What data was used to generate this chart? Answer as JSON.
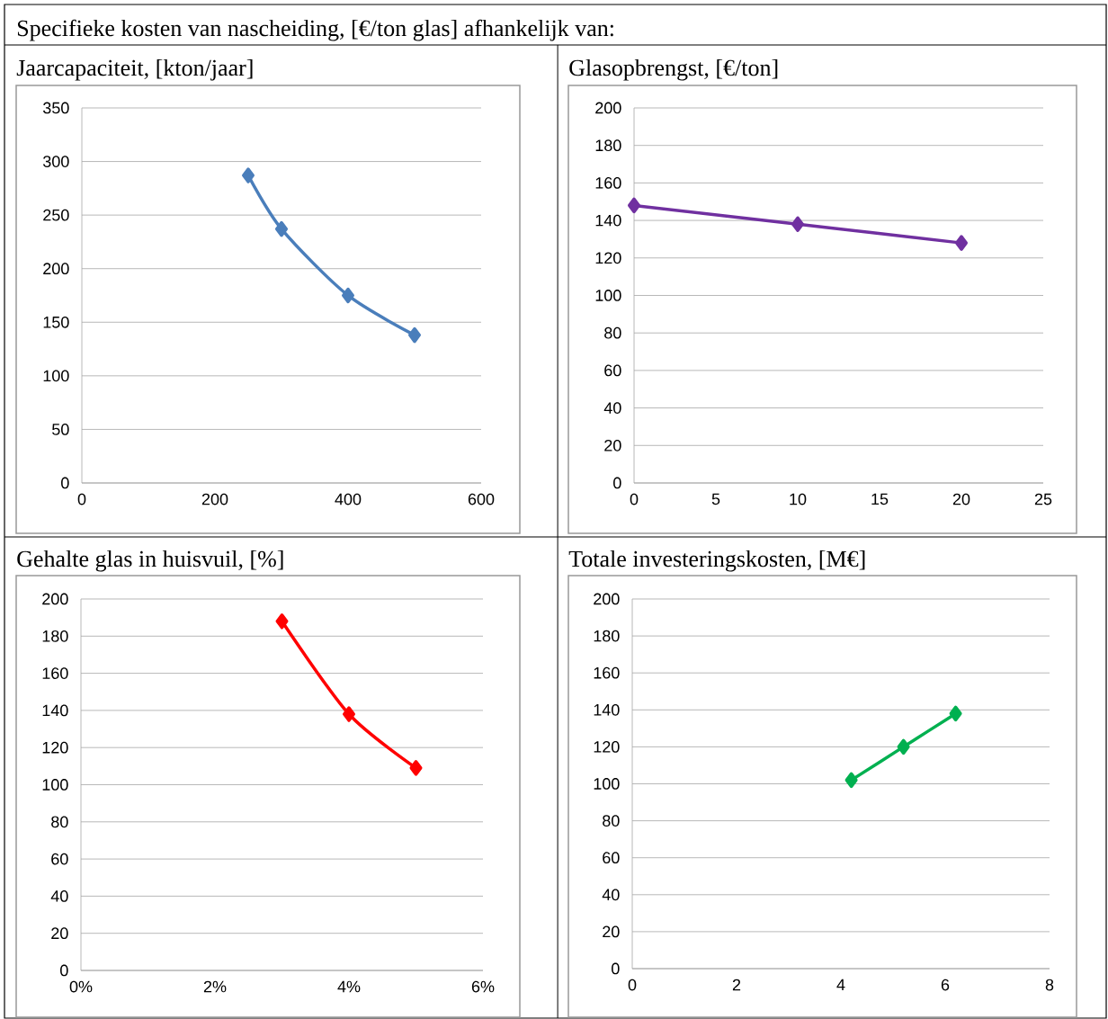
{
  "chart_data": [
    {
      "type": "other",
      "title": "Specifieke kosten van nascheiding, [€/ton glas] afhankelijk van:"
    },
    {
      "type": "line",
      "title": "Jaarcapaciteit, [kton/jaar]",
      "x": [
        250,
        300,
        400,
        500
      ],
      "values": [
        287,
        237,
        175,
        138
      ],
      "color": "#4a7ebb",
      "xlim": [
        0,
        600
      ],
      "xticks": [
        0,
        200,
        400,
        600
      ],
      "ylim": [
        0,
        350
      ],
      "yticks": [
        0,
        50,
        100,
        150,
        200,
        250,
        300,
        350
      ],
      "grid": "y",
      "marker": "diamond"
    },
    {
      "type": "line",
      "title": "Glasopbrengst, [€/ton]",
      "x": [
        0,
        10,
        20
      ],
      "values": [
        148,
        138,
        128
      ],
      "color": "#7030a0",
      "xlim": [
        0,
        25
      ],
      "xticks": [
        0,
        5,
        10,
        15,
        20,
        25
      ],
      "ylim": [
        0,
        200
      ],
      "yticks": [
        0,
        20,
        40,
        60,
        80,
        100,
        120,
        140,
        160,
        180,
        200
      ],
      "grid": "y",
      "marker": "diamond"
    },
    {
      "type": "line",
      "title": "Gehalte glas in huisvuil, [%]",
      "x": [
        3,
        4,
        5
      ],
      "values": [
        188,
        138,
        109
      ],
      "color": "#ff0000",
      "xlim": [
        0,
        6
      ],
      "xticks": [
        {
          "value": 0,
          "label": "0%"
        },
        {
          "value": 2,
          "label": "2%"
        },
        {
          "value": 4,
          "label": "4%"
        },
        {
          "value": 6,
          "label": "6%"
        }
      ],
      "ylim": [
        0,
        200
      ],
      "yticks": [
        0,
        20,
        40,
        60,
        80,
        100,
        120,
        140,
        160,
        180,
        200
      ],
      "grid": "y",
      "marker": "diamond"
    },
    {
      "type": "line",
      "title": "Totale investeringskosten, [M€]",
      "x": [
        4.2,
        5.2,
        6.2
      ],
      "values": [
        102,
        120,
        138
      ],
      "color": "#00b050",
      "xlim": [
        0,
        8
      ],
      "xticks": [
        0,
        2,
        4,
        6,
        8
      ],
      "ylim": [
        0,
        200
      ],
      "yticks": [
        0,
        20,
        40,
        60,
        80,
        100,
        120,
        140,
        160,
        180,
        200
      ],
      "grid": "y",
      "marker": "diamond"
    }
  ]
}
